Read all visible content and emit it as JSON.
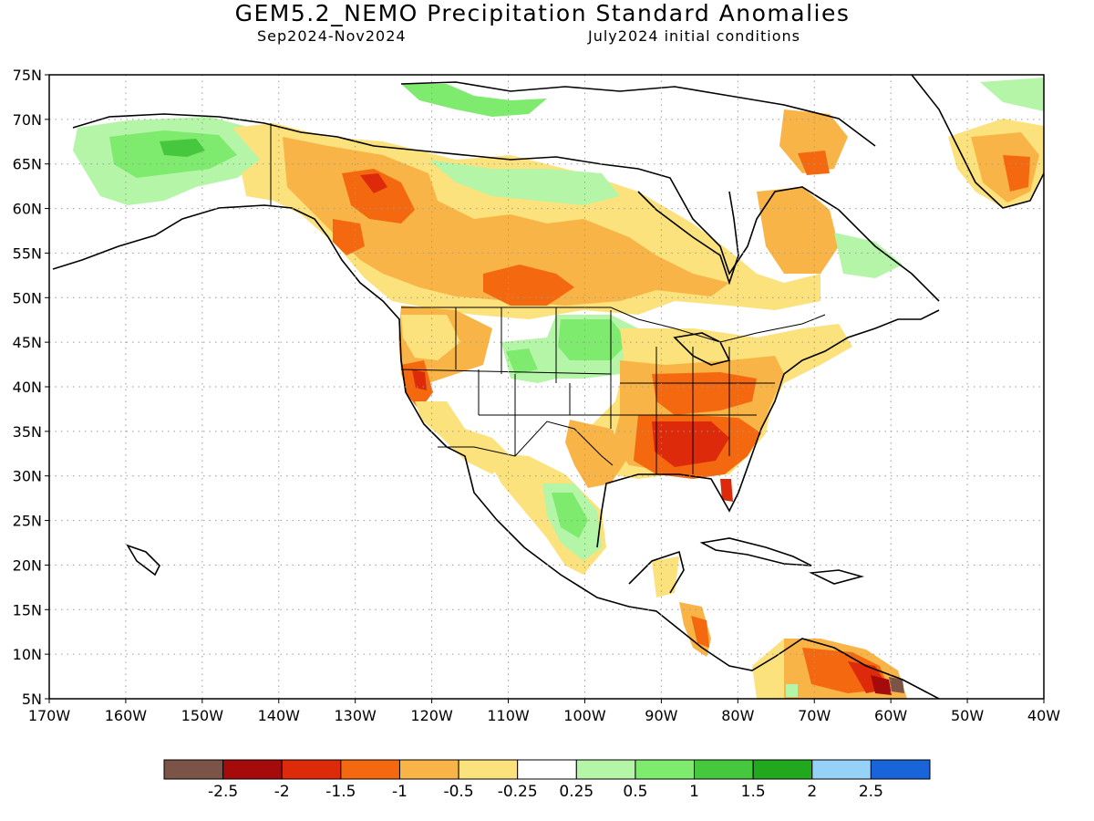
{
  "title": "GEM5.2_NEMO Precipitation Standard Anomalies",
  "subtitle_left": "Sep2024-Nov2024",
  "subtitle_right": "July2024 initial conditions",
  "map": {
    "lon_range": [
      -170,
      -40
    ],
    "lat_range": [
      5,
      75
    ],
    "lat_ticks": [
      "75N",
      "70N",
      "65N",
      "60N",
      "55N",
      "50N",
      "45N",
      "40N",
      "35N",
      "30N",
      "25N",
      "20N",
      "15N",
      "10N",
      "5N"
    ],
    "lon_ticks": [
      "170W",
      "160W",
      "150W",
      "140W",
      "130W",
      "120W",
      "110W",
      "100W",
      "90W",
      "80W",
      "70W",
      "60W",
      "50W",
      "40W"
    ],
    "grid": true,
    "anomaly_regions": [
      {
        "name": "southeast-us-dry",
        "lon": -86,
        "lat": 33,
        "class": "-2 to -1.5"
      },
      {
        "name": "alaska-wet",
        "lon": -154,
        "lat": 66,
        "class": "0.5 to 1"
      },
      {
        "name": "northern-plains-wet",
        "lon": -102,
        "lat": 45,
        "class": "0.25 to 1"
      },
      {
        "name": "mexico-wet",
        "lon": -103,
        "lat": 25,
        "class": "0.25 to 1"
      },
      {
        "name": "yukon-dry",
        "lon": -130,
        "lat": 62,
        "class": "-1.5 to -0.5"
      },
      {
        "name": "greenland-dry",
        "lon": -45,
        "lat": 63,
        "class": "-1.5 to -0.5"
      },
      {
        "name": "venezuela-dry",
        "lon": -64,
        "lat": 8,
        "class": "-2 to -0.5"
      }
    ]
  },
  "colorbar": {
    "colors": [
      "#7b5447",
      "#a50b0b",
      "#dd2a0b",
      "#f4680f",
      "#f9b447",
      "#fce27c",
      "#ffffff",
      "#b4f5a8",
      "#7eea6e",
      "#46c83e",
      "#21a81f",
      "#96d1f8",
      "#1864d8"
    ],
    "labels": [
      "-2.5",
      "-2",
      "-1.5",
      "-1",
      "-0.5",
      "-0.25",
      "0.25",
      "0.5",
      "1",
      "1.5",
      "2",
      "2.5"
    ]
  }
}
